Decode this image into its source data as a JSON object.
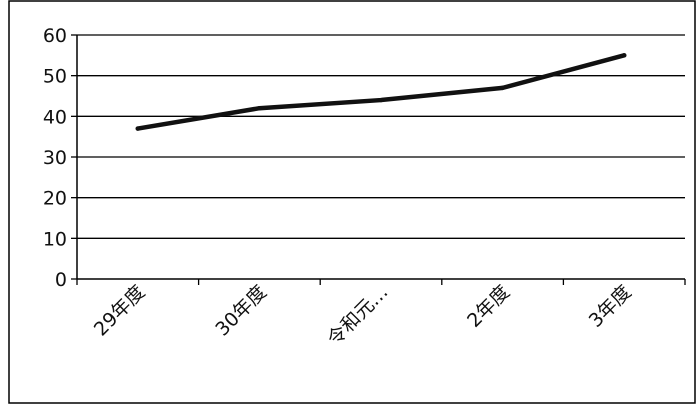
{
  "chart_data": {
    "type": "line",
    "categories": [
      "29年度",
      "30年度",
      "令和元…",
      "2年度",
      "3年度"
    ],
    "series": [
      {
        "values": [
          37,
          42,
          44,
          47,
          55
        ]
      }
    ],
    "y_ticks": [
      "0",
      "10",
      "20",
      "30",
      "40",
      "50",
      "60"
    ],
    "ylim": [
      0,
      60
    ],
    "grid": true,
    "legend": false,
    "colors": {
      "line": "#111111",
      "grid": "#000000",
      "frame": "#000000"
    }
  }
}
